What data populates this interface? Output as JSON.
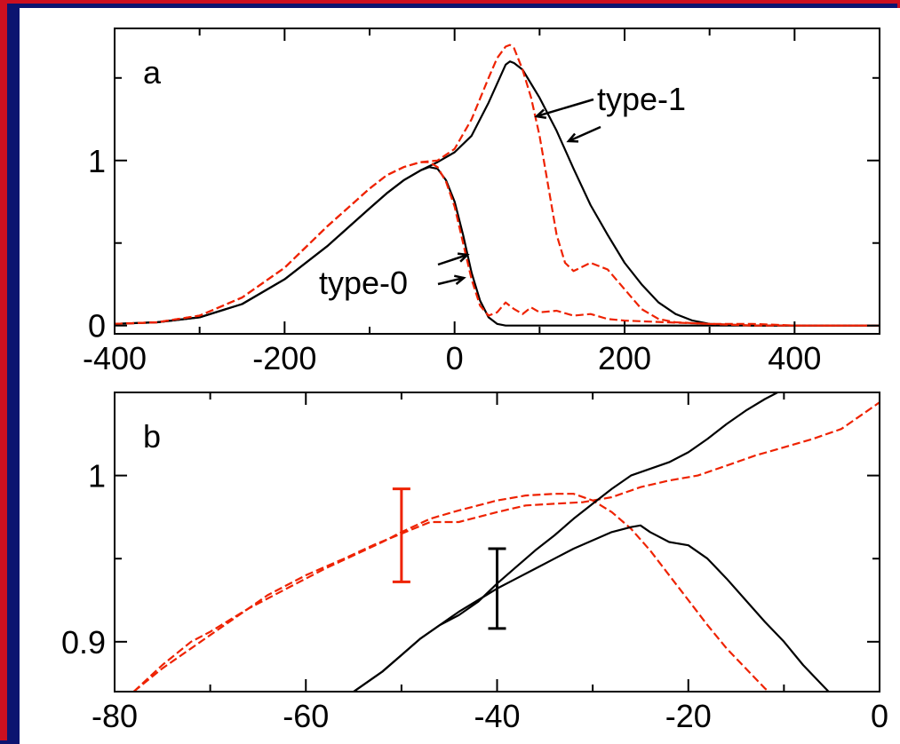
{
  "colors": {
    "frame_border": "#cc1020",
    "background": "#0c1470",
    "red": "#ee2200",
    "black": "#000000"
  },
  "chart_data": [
    {
      "type": "line",
      "panel_label": "a",
      "xlabel": "",
      "ylabel": "",
      "xlim": [
        -400,
        500
      ],
      "ylim": [
        -0.05,
        1.8
      ],
      "xticks": [
        -400,
        -200,
        0,
        200,
        400
      ],
      "xtick_labels": [
        "-400",
        "-200",
        "0",
        "200",
        "400"
      ],
      "yticks": [
        0,
        1
      ],
      "ytick_labels": [
        "0",
        "1"
      ],
      "annotations": [
        "type-1",
        "type-0"
      ],
      "series": [
        {
          "color": "#000000",
          "dash": "solid",
          "x": [
            -400,
            -350,
            -300,
            -250,
            -200,
            -150,
            -100,
            -80,
            -60,
            -40,
            -30,
            -20,
            -10,
            0,
            10,
            20,
            30,
            40,
            50,
            60,
            80,
            100,
            120,
            140,
            160,
            180,
            200,
            220,
            240,
            260,
            280,
            300,
            350,
            400,
            450,
            500
          ],
          "y": [
            0.01,
            0.02,
            0.05,
            0.13,
            0.28,
            0.48,
            0.71,
            0.8,
            0.88,
            0.94,
            0.96,
            0.95,
            0.88,
            0.75,
            0.55,
            0.32,
            0.15,
            0.05,
            0.01,
            0,
            0,
            0,
            0,
            0,
            0,
            0,
            0,
            0,
            0,
            0,
            0,
            0,
            0,
            0,
            0,
            0
          ]
        },
        {
          "color": "#000000",
          "dash": "solid",
          "x": [
            -400,
            -350,
            -300,
            -250,
            -200,
            -150,
            -100,
            -80,
            -60,
            -40,
            -20,
            0,
            20,
            40,
            60,
            65,
            70,
            80,
            100,
            120,
            140,
            160,
            180,
            200,
            220,
            240,
            260,
            280,
            300,
            350,
            400,
            450,
            500
          ],
          "y": [
            0.01,
            0.02,
            0.05,
            0.13,
            0.28,
            0.48,
            0.71,
            0.8,
            0.88,
            0.94,
            0.99,
            1.05,
            1.15,
            1.35,
            1.58,
            1.6,
            1.59,
            1.55,
            1.38,
            1.18,
            0.95,
            0.73,
            0.55,
            0.38,
            0.25,
            0.14,
            0.07,
            0.03,
            0.01,
            0,
            0,
            0,
            0
          ]
        },
        {
          "color": "#ee2200",
          "dash": "dashed",
          "x": [
            -400,
            -350,
            -300,
            -250,
            -200,
            -150,
            -100,
            -80,
            -60,
            -40,
            -30,
            -20,
            -10,
            0,
            10,
            20,
            30,
            40,
            50,
            60,
            70,
            80,
            90,
            100,
            120,
            140,
            160,
            180,
            200,
            250,
            300,
            350,
            400,
            450,
            500
          ],
          "y": [
            0.01,
            0.02,
            0.06,
            0.17,
            0.35,
            0.6,
            0.83,
            0.91,
            0.96,
            0.99,
            0.99,
            0.96,
            0.87,
            0.72,
            0.5,
            0.28,
            0.12,
            0.06,
            0.08,
            0.14,
            0.1,
            0.07,
            0.11,
            0.08,
            0.09,
            0.06,
            0.07,
            0.04,
            0.03,
            0.02,
            0.01,
            0.01,
            0.0,
            0.0,
            0.0
          ]
        },
        {
          "color": "#ee2200",
          "dash": "dashed",
          "x": [
            -400,
            -350,
            -300,
            -250,
            -200,
            -150,
            -100,
            -80,
            -60,
            -40,
            -20,
            0,
            20,
            40,
            50,
            60,
            65,
            70,
            80,
            90,
            100,
            110,
            120,
            130,
            140,
            160,
            180,
            200,
            220,
            240,
            260,
            300,
            350,
            400,
            450,
            500
          ],
          "y": [
            0.01,
            0.02,
            0.06,
            0.17,
            0.35,
            0.6,
            0.83,
            0.91,
            0.96,
            0.99,
            1.0,
            1.07,
            1.25,
            1.5,
            1.62,
            1.69,
            1.7,
            1.68,
            1.55,
            1.38,
            1.15,
            0.85,
            0.55,
            0.38,
            0.33,
            0.38,
            0.34,
            0.22,
            0.1,
            0.04,
            0.02,
            0.01,
            0.0,
            0.0,
            0.0,
            0.0
          ]
        }
      ]
    },
    {
      "type": "line",
      "panel_label": "b",
      "xlabel": "",
      "ylabel": "",
      "xlim": [
        -80,
        0
      ],
      "ylim": [
        0.87,
        1.05
      ],
      "xticks": [
        -80,
        -60,
        -40,
        -20,
        0
      ],
      "xtick_labels": [
        "-80",
        "-60",
        "-40",
        "-20",
        "0"
      ],
      "yticks": [
        0.9,
        1
      ],
      "ytick_labels": [
        "0.9",
        "1"
      ],
      "errorbars": [
        {
          "x": -50,
          "y": 0.964,
          "low": 0.936,
          "high": 0.992,
          "color": "#ee2200"
        },
        {
          "x": -40,
          "y": 0.932,
          "low": 0.908,
          "high": 0.956,
          "color": "#000000"
        }
      ],
      "series": [
        {
          "color": "#ee2200",
          "dash": "dashed",
          "x": [
            -78,
            -75,
            -72,
            -70,
            -66,
            -62,
            -58,
            -55,
            -52,
            -50,
            -47,
            -44,
            -42,
            -40,
            -37,
            -34,
            -32,
            -30,
            -28,
            -26,
            -24,
            -22,
            -20,
            -18,
            -16,
            -14,
            -12,
            -10
          ],
          "y": [
            0.87,
            0.886,
            0.9,
            0.906,
            0.92,
            0.932,
            0.944,
            0.952,
            0.96,
            0.966,
            0.974,
            0.979,
            0.982,
            0.985,
            0.988,
            0.989,
            0.989,
            0.985,
            0.978,
            0.968,
            0.955,
            0.94,
            0.925,
            0.91,
            0.896,
            0.884,
            0.872,
            0.862
          ]
        },
        {
          "color": "#ee2200",
          "dash": "dashed",
          "x": [
            -78,
            -75,
            -72,
            -70,
            -67,
            -64,
            -60,
            -56,
            -53,
            -50,
            -47,
            -44,
            -42,
            -40,
            -37,
            -34,
            -31,
            -28,
            -25,
            -22,
            -19,
            -16,
            -13,
            -10,
            -7,
            -4,
            -2,
            0
          ],
          "y": [
            0.87,
            0.884,
            0.896,
            0.904,
            0.916,
            0.928,
            0.94,
            0.95,
            0.958,
            0.965,
            0.972,
            0.972,
            0.975,
            0.978,
            0.982,
            0.983,
            0.984,
            0.987,
            0.993,
            0.997,
            1.0,
            1.006,
            1.012,
            1.017,
            1.022,
            1.028,
            1.036,
            1.044
          ]
        },
        {
          "color": "#000000",
          "dash": "solid",
          "x": [
            -55,
            -52,
            -50,
            -48,
            -46,
            -44,
            -42,
            -40,
            -38,
            -36,
            -34,
            -32,
            -30,
            -28,
            -26,
            -25,
            -24,
            -22,
            -20,
            -18,
            -16,
            -14,
            -12,
            -10,
            -8,
            -6,
            -5
          ],
          "y": [
            0.87,
            0.882,
            0.892,
            0.902,
            0.91,
            0.918,
            0.925,
            0.932,
            0.938,
            0.944,
            0.95,
            0.956,
            0.961,
            0.966,
            0.969,
            0.97,
            0.966,
            0.96,
            0.958,
            0.95,
            0.938,
            0.925,
            0.912,
            0.9,
            0.886,
            0.874,
            0.868
          ]
        },
        {
          "color": "#000000",
          "dash": "solid",
          "x": [
            -55,
            -52,
            -50,
            -48,
            -46,
            -44,
            -42,
            -40,
            -38,
            -36,
            -34,
            -32,
            -30,
            -28,
            -26,
            -24,
            -22,
            -20,
            -18,
            -16,
            -14,
            -12,
            -10
          ],
          "y": [
            0.87,
            0.882,
            0.892,
            0.902,
            0.91,
            0.916,
            0.924,
            0.935,
            0.945,
            0.955,
            0.964,
            0.974,
            0.983,
            0.992,
            1.0,
            1.004,
            1.008,
            1.014,
            1.022,
            1.031,
            1.039,
            1.046,
            1.052
          ]
        }
      ]
    }
  ]
}
